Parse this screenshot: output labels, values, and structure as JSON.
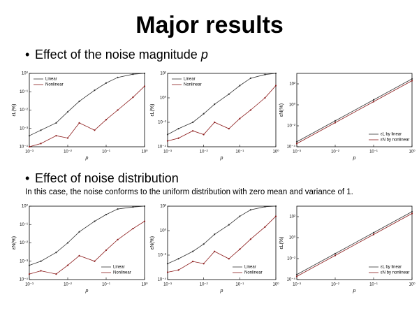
{
  "slide": {
    "title": "Major results",
    "bullet1": "Effect of the noise magnitude",
    "bullet1_var": "p",
    "bullet2": "Effect of noise distribution",
    "note": "In this case, the noise conforms to the uniform distribution with zero mean and variance of 1."
  },
  "chart_data": [
    {
      "type": "line",
      "x_label": "p",
      "y_label": "εL(%)",
      "log_x": true,
      "log_y": true,
      "legend": "upper left",
      "xlim": [
        0.001,
        1
      ],
      "ylim": [
        0.0001,
        1
      ],
      "xticks": [
        {
          "value": 0.001,
          "label": "10⁻³"
        },
        {
          "value": 0.01,
          "label": "10⁻²"
        },
        {
          "value": 0.1,
          "label": "10⁻¹"
        },
        {
          "value": 1,
          "label": "10⁰"
        }
      ],
      "yticks": [
        {
          "value": 0.0001,
          "label": "10⁻⁴"
        },
        {
          "value": 0.001,
          "label": "10⁻³"
        },
        {
          "value": 0.01,
          "label": "10⁻²"
        },
        {
          "value": 0.1,
          "label": "10⁻¹"
        },
        {
          "value": 1,
          "label": "10⁰"
        }
      ],
      "x": [
        0.001,
        0.002,
        0.005,
        0.01,
        0.02,
        0.05,
        0.1,
        0.2,
        0.5,
        1
      ],
      "series": [
        {
          "name": "Linear",
          "color": "#333333",
          "values": [
            0.0004,
            0.0008,
            0.002,
            0.008,
            0.03,
            0.12,
            0.3,
            0.6,
            0.9,
            1
          ]
        },
        {
          "name": "Nonlinear",
          "color": "#8b1a1a",
          "values": [
            0.0001,
            0.00015,
            0.0004,
            0.0003,
            0.002,
            0.0008,
            0.003,
            0.01,
            0.05,
            0.2
          ]
        }
      ]
    },
    {
      "type": "line",
      "x_label": "p",
      "y_label": "εL(%)",
      "log_x": true,
      "log_y": true,
      "legend": "upper left",
      "xlim": [
        0.001,
        1
      ],
      "ylim": [
        0.0001,
        100
      ],
      "xticks": [
        {
          "value": 0.001,
          "label": "10⁻³"
        },
        {
          "value": 0.01,
          "label": "10⁻²"
        },
        {
          "value": 0.1,
          "label": "10⁻¹"
        },
        {
          "value": 1,
          "label": "10⁰"
        }
      ],
      "yticks": [
        {
          "value": 0.0001,
          "label": "10⁻⁴"
        },
        {
          "value": 0.01,
          "label": "10⁻²"
        },
        {
          "value": 1,
          "label": "10⁰"
        },
        {
          "value": 100,
          "label": "10²"
        }
      ],
      "x": [
        0.001,
        0.002,
        0.005,
        0.01,
        0.02,
        0.05,
        0.1,
        0.2,
        0.5,
        1
      ],
      "series": [
        {
          "name": "Linear",
          "color": "#333333",
          "values": [
            0.001,
            0.003,
            0.01,
            0.05,
            0.3,
            2,
            10,
            40,
            80,
            100
          ]
        },
        {
          "name": "Nonlinear",
          "color": "#8b1a1a",
          "values": [
            0.0003,
            0.0005,
            0.002,
            0.001,
            0.01,
            0.003,
            0.02,
            0.1,
            1,
            10
          ]
        }
      ]
    },
    {
      "type": "line",
      "x_label": "p",
      "y_label": "εN(%)",
      "log_x": true,
      "log_y": true,
      "legend": "lower right",
      "xlim": [
        0.001,
        1
      ],
      "ylim": [
        0.0001,
        1000
      ],
      "xticks": [
        {
          "value": 0.001,
          "label": "10⁻³"
        },
        {
          "value": 0.01,
          "label": "10⁻²"
        },
        {
          "value": 0.1,
          "label": "10⁻¹"
        },
        {
          "value": 1,
          "label": "10⁰"
        }
      ],
      "yticks": [
        {
          "value": 0.0001,
          "label": "10⁻⁴"
        },
        {
          "value": 0.01,
          "label": "10⁻²"
        },
        {
          "value": 1,
          "label": "10⁰"
        },
        {
          "value": 100,
          "label": "10²"
        }
      ],
      "x": [
        0.001,
        0.01,
        0.1,
        1
      ],
      "series": [
        {
          "name": "εL by linear",
          "color": "#333333",
          "values": [
            0.0003,
            0.03,
            3,
            300
          ]
        },
        {
          "name": "εN by nonlinear",
          "color": "#8b1a1a",
          "values": [
            0.0002,
            0.02,
            2,
            200
          ]
        }
      ]
    },
    {
      "type": "line",
      "x_label": "p",
      "y_label": "εN(%)",
      "log_x": true,
      "log_y": true,
      "legend": "lower right",
      "xlim": [
        0.001,
        1
      ],
      "ylim": [
        0.0001,
        1
      ],
      "xticks": [
        {
          "value": 0.001,
          "label": "10⁻³"
        },
        {
          "value": 0.01,
          "label": "10⁻²"
        },
        {
          "value": 0.1,
          "label": "10⁻¹"
        },
        {
          "value": 1,
          "label": "10⁰"
        }
      ],
      "yticks": [
        {
          "value": 0.0001,
          "label": "10⁻⁴"
        },
        {
          "value": 0.001,
          "label": "10⁻³"
        },
        {
          "value": 0.01,
          "label": "10⁻²"
        },
        {
          "value": 0.1,
          "label": "10⁻¹"
        },
        {
          "value": 1,
          "label": "10⁰"
        }
      ],
      "x": [
        0.001,
        0.002,
        0.005,
        0.01,
        0.02,
        0.05,
        0.1,
        0.2,
        0.5,
        1
      ],
      "series": [
        {
          "name": "Linear",
          "color": "#333333",
          "values": [
            0.0006,
            0.001,
            0.003,
            0.01,
            0.04,
            0.15,
            0.35,
            0.7,
            0.9,
            1
          ]
        },
        {
          "name": "Nonlinear",
          "color": "#8b1a1a",
          "values": [
            0.0002,
            0.0003,
            0.0002,
            0.0006,
            0.002,
            0.001,
            0.004,
            0.015,
            0.06,
            0.15
          ]
        }
      ]
    },
    {
      "type": "line",
      "x_label": "p",
      "y_label": "εN(%)",
      "log_x": true,
      "log_y": true,
      "legend": "lower right",
      "xlim": [
        0.001,
        1
      ],
      "ylim": [
        0.0001,
        100
      ],
      "xticks": [
        {
          "value": 0.001,
          "label": "10⁻³"
        },
        {
          "value": 0.01,
          "label": "10⁻²"
        },
        {
          "value": 0.1,
          "label": "10⁻¹"
        },
        {
          "value": 1,
          "label": "10⁰"
        }
      ],
      "yticks": [
        {
          "value": 0.0001,
          "label": "10⁻⁴"
        },
        {
          "value": 0.01,
          "label": "10⁻²"
        },
        {
          "value": 1,
          "label": "10⁰"
        },
        {
          "value": 100,
          "label": "10²"
        }
      ],
      "x": [
        0.001,
        0.002,
        0.005,
        0.01,
        0.02,
        0.05,
        0.1,
        0.2,
        0.5,
        1
      ],
      "series": [
        {
          "name": "Linear",
          "color": "#333333",
          "values": [
            0.002,
            0.005,
            0.02,
            0.08,
            0.5,
            3,
            15,
            50,
            90,
            100
          ]
        },
        {
          "name": "Nonlinear",
          "color": "#8b1a1a",
          "values": [
            0.0004,
            0.0006,
            0.003,
            0.002,
            0.02,
            0.005,
            0.03,
            0.2,
            2,
            15
          ]
        }
      ]
    },
    {
      "type": "line",
      "x_label": "p",
      "y_label": "εL(%)",
      "log_x": true,
      "log_y": true,
      "legend": "lower right",
      "xlim": [
        0.001,
        1
      ],
      "ylim": [
        0.0001,
        1000
      ],
      "xticks": [
        {
          "value": 0.001,
          "label": "10⁻³"
        },
        {
          "value": 0.01,
          "label": "10⁻²"
        },
        {
          "value": 0.1,
          "label": "10⁻¹"
        },
        {
          "value": 1,
          "label": "10⁰"
        }
      ],
      "yticks": [
        {
          "value": 0.0001,
          "label": "10⁻⁴"
        },
        {
          "value": 0.01,
          "label": "10⁻²"
        },
        {
          "value": 1,
          "label": "10⁰"
        },
        {
          "value": 100,
          "label": "10²"
        }
      ],
      "x": [
        0.001,
        0.01,
        0.1,
        1
      ],
      "series": [
        {
          "name": "εL by linear",
          "color": "#333333",
          "values": [
            0.0003,
            0.03,
            3,
            300
          ]
        },
        {
          "name": "εN by nonlinear",
          "color": "#8b1a1a",
          "values": [
            0.0002,
            0.02,
            2,
            200
          ]
        }
      ]
    }
  ]
}
